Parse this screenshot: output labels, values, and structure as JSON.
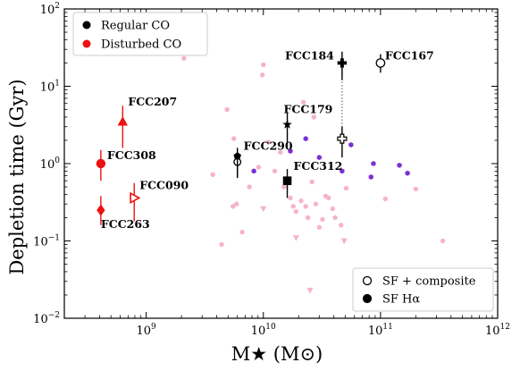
{
  "chart_data": {
    "type": "scatter",
    "xlabel": "M★ (M⊙)",
    "ylabel": "Depletion time (Gyr)",
    "xscale": "log",
    "yscale": "log",
    "xlim": [
      200000000.0,
      1000000000000.0
    ],
    "ylim": [
      0.01,
      100
    ],
    "x_ticks": [
      {
        "value": 1000000000.0,
        "base": "10",
        "exp": "9"
      },
      {
        "value": 10000000000.0,
        "base": "10",
        "exp": "10"
      },
      {
        "value": 100000000000.0,
        "base": "10",
        "exp": "11"
      },
      {
        "value": 1000000000000.0,
        "base": "10",
        "exp": "12"
      }
    ],
    "y_ticks": [
      {
        "value": 100,
        "base": "10",
        "exp": "2"
      },
      {
        "value": 10,
        "base": "10",
        "exp": "1"
      },
      {
        "value": 1,
        "base": "10",
        "exp": "0"
      },
      {
        "value": 0.1,
        "base": "10",
        "exp": "−1"
      },
      {
        "value": 0.01,
        "base": "10",
        "exp": "−2"
      }
    ],
    "legend_upper": {
      "position": "top-left",
      "entries": [
        {
          "label": "Regular CO",
          "color": "#000000"
        },
        {
          "label": "Disturbed CO",
          "color": "#ee1111"
        }
      ]
    },
    "legend_lower": {
      "position": "bottom-right",
      "entries": [
        {
          "label": "SF + composite",
          "marker": "open-circle"
        },
        {
          "label": "SF Hα",
          "marker": "filled-circle"
        }
      ]
    },
    "colors": {
      "regular": "#000000",
      "disturbed": "#ee1111",
      "background_pink": "#f6b4c6",
      "background_purple": "#7b2fd4"
    },
    "labeled_galaxies": [
      {
        "name": "FCC207",
        "group": "disturbed",
        "marker": "triangle",
        "mass": 630000000.0,
        "tdep": 3.5,
        "err_low": 1.6,
        "err_high": 5.6
      },
      {
        "name": "FCC308",
        "group": "disturbed",
        "marker": "circle",
        "mass": 410000000.0,
        "tdep": 1.0,
        "err_low": 0.6,
        "err_high": 1.5
      },
      {
        "name": "FCC090",
        "group": "disturbed",
        "marker": "tri-right",
        "mass": 790000000.0,
        "tdep": 0.36,
        "err_low": 0.18,
        "err_high": 0.56
      },
      {
        "name": "FCC263",
        "group": "disturbed",
        "marker": "diamond",
        "mass": 410000000.0,
        "tdep": 0.25,
        "err_low": 0.16,
        "err_high": 0.38
      },
      {
        "name": "FCC290",
        "group": "regular",
        "marker": "pentagon",
        "mass": 6000000000.0,
        "tdep": 1.25,
        "err_low": 0.7,
        "err_high": 1.6
      },
      {
        "name": "FCC312",
        "group": "regular",
        "marker": "square",
        "mass": 16000000000.0,
        "tdep": 0.6,
        "err_low": 0.36,
        "err_high": 0.85
      },
      {
        "name": "FCC179",
        "group": "regular",
        "marker": "star",
        "mass": 16000000000.0,
        "tdep": 3.2,
        "err_low": 1.8,
        "err_high": 4.5
      },
      {
        "name": "FCC184",
        "group": "regular",
        "marker": "plus",
        "mass": 47000000000.0,
        "tdep": 20,
        "err_low": 12,
        "err_high": 28
      },
      {
        "name": "FCC167",
        "group": "regular",
        "marker": "open-circle",
        "mass": 100000000000.0,
        "tdep": 20,
        "err_low": 15,
        "err_high": 26
      }
    ],
    "unlabeled_points": [
      {
        "mass": 6000000000.0,
        "tdep": 1.05,
        "marker": "open-circle",
        "err_low": 0.65,
        "err_high": 1.4
      },
      {
        "mass": 47000000000.0,
        "tdep": 2.1,
        "marker": "open-plus",
        "err_low": 1.2,
        "err_high": 3.0
      }
    ],
    "dotted_link": {
      "mass": 47000000000.0,
      "from": 20,
      "to": 2.1
    },
    "background_pink": [
      {
        "mass": 2100000000.0,
        "tdep": 23
      },
      {
        "mass": 3700000000.0,
        "tdep": 0.72
      },
      {
        "mass": 4400000000.0,
        "tdep": 0.09
      },
      {
        "mass": 4900000000.0,
        "tdep": 5.0
      },
      {
        "mass": 5500000000.0,
        "tdep": 0.28
      },
      {
        "mass": 5600000000.0,
        "tdep": 2.1
      },
      {
        "mass": 5900000000.0,
        "tdep": 0.3
      },
      {
        "mass": 6600000000.0,
        "tdep": 0.13
      },
      {
        "mass": 7600000000.0,
        "tdep": 0.5
      },
      {
        "mass": 9100000000.0,
        "tdep": 0.9
      },
      {
        "mass": 9800000000.0,
        "tdep": 14
      },
      {
        "mass": 10000000000.0,
        "tdep": 19
      },
      {
        "mass": 10000000000.0,
        "tdep": 0.26,
        "marker": "triangle-down"
      },
      {
        "mass": 11000000000.0,
        "tdep": 1.9
      },
      {
        "mass": 12500000000.0,
        "tdep": 0.8
      },
      {
        "mass": 14000000000.0,
        "tdep": 1.4
      },
      {
        "mass": 15000000000.0,
        "tdep": 0.5
      },
      {
        "mass": 17000000000.0,
        "tdep": 0.36
      },
      {
        "mass": 18000000000.0,
        "tdep": 0.28
      },
      {
        "mass": 19000000000.0,
        "tdep": 0.24
      },
      {
        "mass": 19000000000.0,
        "tdep": 0.11,
        "marker": "triangle-down"
      },
      {
        "mass": 21000000000.0,
        "tdep": 0.33
      },
      {
        "mass": 22000000000.0,
        "tdep": 6.2
      },
      {
        "mass": 23000000000.0,
        "tdep": 0.28
      },
      {
        "mass": 24000000000.0,
        "tdep": 0.2
      },
      {
        "mass": 25000000000.0,
        "tdep": 0.023,
        "marker": "triangle-down"
      },
      {
        "mass": 26000000000.0,
        "tdep": 0.58
      },
      {
        "mass": 27000000000.0,
        "tdep": 4.0
      },
      {
        "mass": 28000000000.0,
        "tdep": 0.3
      },
      {
        "mass": 30000000000.0,
        "tdep": 0.15
      },
      {
        "mass": 32000000000.0,
        "tdep": 0.19
      },
      {
        "mass": 34000000000.0,
        "tdep": 0.38
      },
      {
        "mass": 36000000000.0,
        "tdep": 0.36
      },
      {
        "mass": 39000000000.0,
        "tdep": 0.26
      },
      {
        "mass": 41000000000.0,
        "tdep": 0.2
      },
      {
        "mass": 46000000000.0,
        "tdep": 0.16
      },
      {
        "mass": 49000000000.0,
        "tdep": 0.1,
        "marker": "triangle-down"
      },
      {
        "mass": 51000000000.0,
        "tdep": 0.48
      },
      {
        "mass": 110000000000.0,
        "tdep": 0.35
      },
      {
        "mass": 200000000000.0,
        "tdep": 0.47
      },
      {
        "mass": 340000000000.0,
        "tdep": 0.1
      }
    ],
    "background_purple": [
      {
        "mass": 8300000000.0,
        "tdep": 0.8
      },
      {
        "mass": 17000000000.0,
        "tdep": 1.45
      },
      {
        "mass": 23000000000.0,
        "tdep": 2.1
      },
      {
        "mass": 30000000000.0,
        "tdep": 1.2
      },
      {
        "mass": 47000000000.0,
        "tdep": 0.8
      },
      {
        "mass": 56000000000.0,
        "tdep": 1.75
      },
      {
        "mass": 83000000000.0,
        "tdep": 0.67
      },
      {
        "mass": 87000000000.0,
        "tdep": 1.0
      },
      {
        "mass": 145000000000.0,
        "tdep": 0.95
      },
      {
        "mass": 170000000000.0,
        "tdep": 0.75
      }
    ]
  }
}
